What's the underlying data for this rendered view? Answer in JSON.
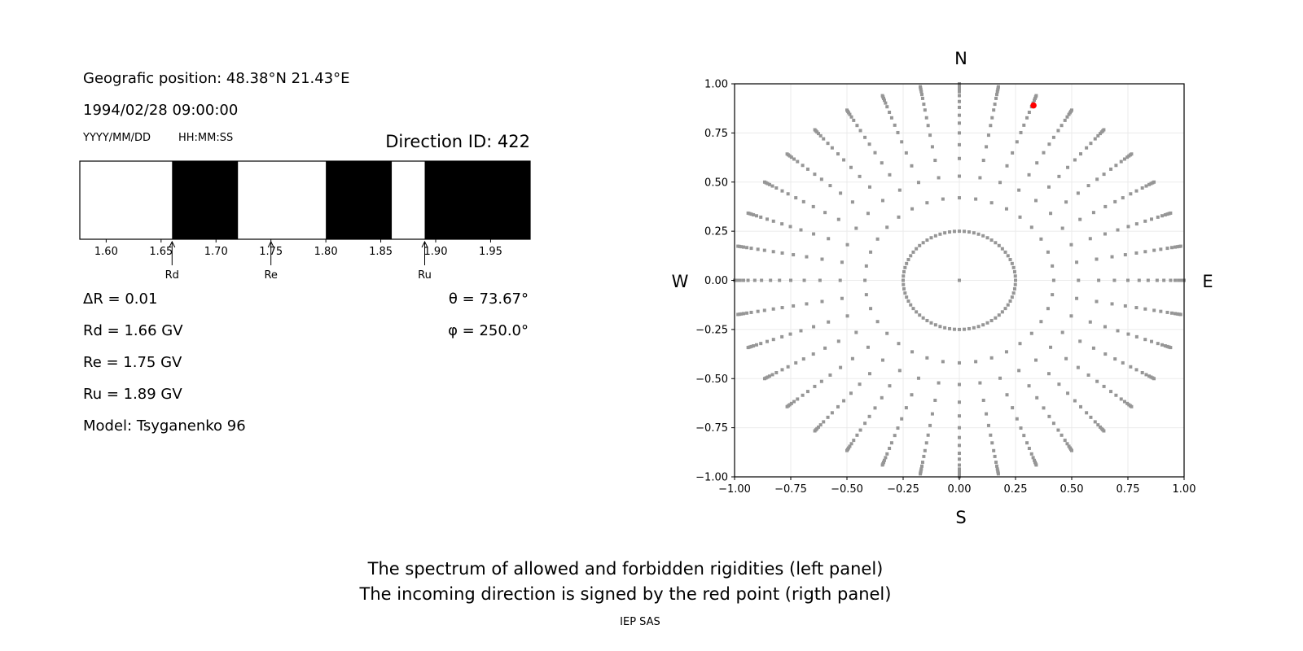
{
  "left_panel": {
    "position": "Geografic position: 48.38°N 21.43°E",
    "datetime": "1994/02/28 09:00:00",
    "date_format": "YYYY/MM/DD",
    "time_format": "HH:MM:SS",
    "direction_id": "Direction ID: 422",
    "delta_r": "ΔR = 0.01",
    "rd": "Rd = 1.66 GV",
    "re": "Re = 1.75 GV",
    "ru": "Ru = 1.89 GV",
    "model": "Model: Tsyganenko 96",
    "theta": "θ = 73.67°",
    "phi": "φ = 250.0°"
  },
  "chart_data": [
    {
      "type": "bar",
      "title": "",
      "xlim": [
        1.576,
        1.986
      ],
      "xticks": [
        "1.60",
        "1.65",
        "1.70",
        "1.75",
        "1.80",
        "1.85",
        "1.90",
        "1.95"
      ],
      "forbidden_bands": [
        [
          1.66,
          1.72
        ],
        [
          1.8,
          1.86
        ],
        [
          1.89,
          1.986
        ]
      ],
      "allowed_color": "#ffffff",
      "forbidden_color": "#000000",
      "markers": [
        {
          "label": "Rd",
          "value": 1.66
        },
        {
          "label": "Re",
          "value": 1.75
        },
        {
          "label": "Ru",
          "value": 1.89
        }
      ]
    },
    {
      "type": "scatter",
      "xlim": [
        -1,
        1
      ],
      "ylim": [
        -1,
        1
      ],
      "xticks": [
        "−1.00",
        "−0.75",
        "−0.50",
        "−0.25",
        "0.00",
        "0.25",
        "0.50",
        "0.75",
        "1.00"
      ],
      "yticks": [
        "−1.00",
        "−0.75",
        "−0.50",
        "−0.25",
        "0.00",
        "0.25",
        "0.50",
        "0.75",
        "1.00"
      ],
      "grid": true,
      "directions": {
        "N": "N",
        "S": "S",
        "W": "W",
        "E": "E"
      },
      "point_color": "#969696",
      "ray_azimuth_step_deg": 10,
      "ray_radii": [
        0.42,
        0.53,
        0.62,
        0.69,
        0.75,
        0.8,
        0.84,
        0.88,
        0.91,
        0.94,
        0.96,
        0.975,
        0.985,
        0.993,
        1.0
      ],
      "inner_ring_radius": 0.25,
      "inner_ring_step_deg": 5,
      "center_point": [
        0,
        0
      ],
      "highlight": {
        "x": 0.33,
        "y": 0.89,
        "color": "#ff0000"
      }
    }
  ],
  "caption": {
    "line1": "The spectrum of allowed and forbidden rigidities (left panel)",
    "line2": "The incoming direction is signed by the red point (rigth panel)",
    "credit": "IEP SAS"
  }
}
